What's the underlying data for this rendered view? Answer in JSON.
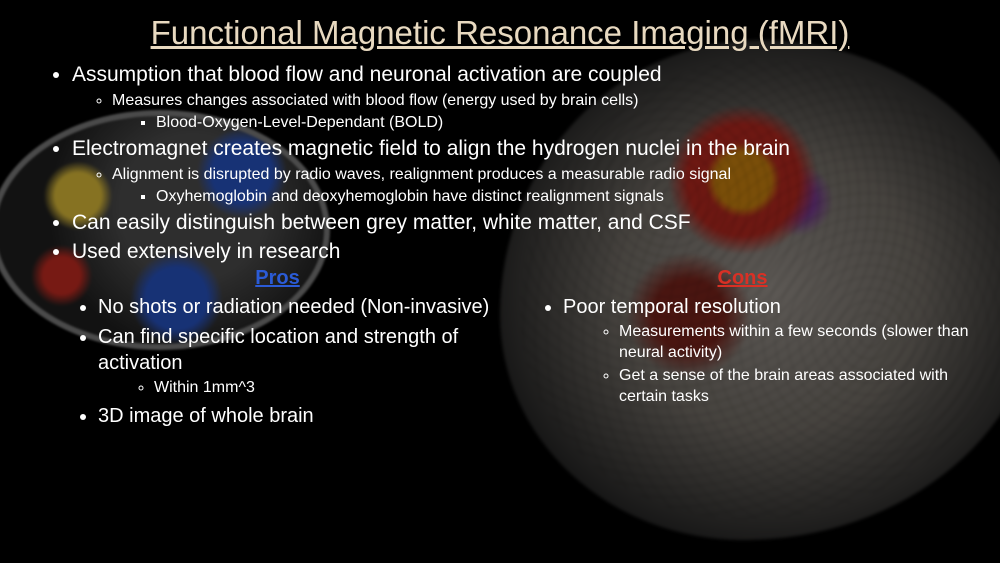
{
  "title": "Functional Magnetic Resonance Imaging (fMRI)",
  "colors": {
    "title": "#e8d9c0",
    "text": "#ffffff",
    "pros": "#2b5bd6",
    "cons": "#d93025",
    "background": "#000000"
  },
  "bullets": {
    "b1": "Assumption that blood flow and neuronal activation are coupled",
    "b1_s1": "Measures changes associated with blood flow (energy used by brain cells)",
    "b1_s1_a": "Blood-Oxygen-Level-Dependant (BOLD)",
    "b2": "Electromagnet creates magnetic field to align the hydrogen nuclei in the brain",
    "b2_s1": "Alignment is disrupted by radio waves, realignment produces a measurable radio signal",
    "b2_s1_a": "Oxyhemoglobin and deoxyhemoglobin have distinct realignment signals",
    "b3": "Can easily distinguish between grey matter, white matter, and CSF",
    "b4": "Used extensively in research"
  },
  "pros": {
    "header": "Pros",
    "p1": "No shots or radiation needed (Non-invasive)",
    "p2": "Can find specific location and strength of activation",
    "p2_s1": "Within 1mm^3",
    "p3": "3D image of whole brain"
  },
  "cons": {
    "header": "Cons",
    "c1": "Poor temporal resolution",
    "c1_s1": "Measurements within a few seconds (slower than neural activity)",
    "c1_s2": "Get a sense of the brain areas associated with certain tasks"
  }
}
